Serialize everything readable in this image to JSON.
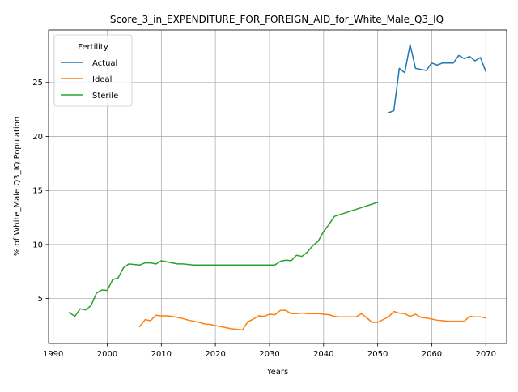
{
  "chart_data": {
    "type": "line",
    "title": "Score_3_in_EXPENDITURE_FOR_FOREIGN_AID_for_White_Male_Q3_IQ",
    "xlabel": "Years",
    "ylabel": "% of White_Male Q3_IQ Population",
    "xlim": [
      1989.15,
      2073.85
    ],
    "ylim": [
      0.85,
      29.85
    ],
    "xticks": [
      1990,
      2000,
      2010,
      2020,
      2030,
      2040,
      2050,
      2060,
      2070
    ],
    "yticks": [
      5,
      10,
      15,
      20,
      25
    ],
    "grid": true,
    "legend": {
      "title": "Fertility",
      "placement": "top-left"
    },
    "series": [
      {
        "name": "Actual",
        "color": "#1f77b4",
        "x": [
          2052,
          2053,
          2054,
          2055,
          2056,
          2057,
          2058,
          2059,
          2060,
          2061,
          2062,
          2063,
          2064,
          2065,
          2066,
          2067,
          2068,
          2069,
          2070
        ],
        "y": [
          22.2,
          22.4,
          26.3,
          25.9,
          28.5,
          26.3,
          26.2,
          26.1,
          26.8,
          26.6,
          26.8,
          26.8,
          26.8,
          27.5,
          27.2,
          27.4,
          27.0,
          27.3,
          26.0
        ]
      },
      {
        "name": "Ideal",
        "color": "#ff7f0e",
        "x": [
          2006,
          2007,
          2008,
          2009,
          2010,
          2011,
          2012,
          2013,
          2014,
          2015,
          2016,
          2017,
          2018,
          2019,
          2020,
          2021,
          2022,
          2023,
          2024,
          2025,
          2026,
          2027,
          2028,
          2029,
          2030,
          2031,
          2032,
          2033,
          2034,
          2035,
          2036,
          2037,
          2038,
          2039,
          2040,
          2041,
          2042,
          2043,
          2044,
          2045,
          2046,
          2047,
          2048,
          2049,
          2050,
          2051,
          2052,
          2053,
          2054,
          2055,
          2056,
          2057,
          2058,
          2059,
          2060,
          2061,
          2062,
          2063,
          2064,
          2065,
          2066,
          2067,
          2068,
          2069,
          2070
        ],
        "y": [
          2.4,
          3.05,
          2.95,
          3.45,
          3.4,
          3.4,
          3.35,
          3.25,
          3.15,
          3.0,
          2.9,
          2.8,
          2.65,
          2.6,
          2.5,
          2.4,
          2.3,
          2.2,
          2.15,
          2.1,
          2.85,
          3.1,
          3.4,
          3.35,
          3.55,
          3.5,
          3.9,
          3.9,
          3.6,
          3.6,
          3.65,
          3.6,
          3.6,
          3.6,
          3.55,
          3.5,
          3.35,
          3.3,
          3.3,
          3.3,
          3.3,
          3.6,
          3.2,
          2.8,
          2.8,
          3.05,
          3.3,
          3.8,
          3.65,
          3.6,
          3.35,
          3.55,
          3.25,
          3.2,
          3.1,
          3.0,
          2.95,
          2.9,
          2.9,
          2.9,
          2.9,
          3.35,
          3.3,
          3.3,
          3.2
        ]
      },
      {
        "name": "Sterile",
        "color": "#2ca02c",
        "x": [
          1993,
          1994,
          1995,
          1996,
          1997,
          1998,
          1999,
          2000,
          2001,
          2002,
          2003,
          2004,
          2005,
          2006,
          2007,
          2008,
          2009,
          2010,
          2011,
          2012,
          2013,
          2014,
          2015,
          2016,
          2017,
          2018,
          2019,
          2020,
          2025,
          2031,
          2032,
          2033,
          2034,
          2035,
          2036,
          2037,
          2038,
          2039,
          2040,
          2041,
          2042,
          2050
        ],
        "y": [
          3.7,
          3.35,
          4.05,
          3.95,
          4.35,
          5.5,
          5.8,
          5.75,
          6.75,
          6.9,
          7.85,
          8.2,
          8.15,
          8.1,
          8.3,
          8.3,
          8.2,
          8.5,
          8.4,
          8.3,
          8.2,
          8.2,
          8.15,
          8.1,
          8.1,
          8.1,
          8.1,
          8.1,
          8.1,
          8.1,
          8.45,
          8.55,
          8.5,
          9.0,
          8.9,
          9.3,
          9.9,
          10.3,
          11.2,
          11.85,
          12.6,
          13.9
        ]
      }
    ]
  }
}
